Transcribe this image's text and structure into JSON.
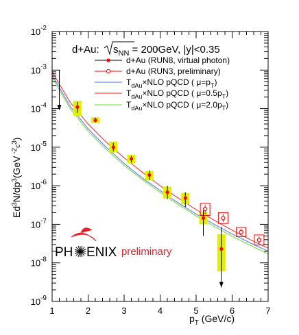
{
  "chart_data": {
    "type": "scatter",
    "title": "",
    "xlabel": "p_T (GeV/c)",
    "ylabel": "Ed^3N/dp^3(GeV^-2c^3)",
    "xlim": [
      1,
      7
    ],
    "ylim": [
      1e-09,
      0.01
    ],
    "yscale": "log",
    "grid": false,
    "legend_position": "top-right",
    "x_ticks": [
      1,
      2,
      3,
      4,
      5,
      6,
      7
    ],
    "y_ticks": [
      {
        "value": 1e-09,
        "base": "10",
        "exp": "-9"
      },
      {
        "value": 1e-08,
        "base": "10",
        "exp": "-8"
      },
      {
        "value": 1e-07,
        "base": "10",
        "exp": "-7"
      },
      {
        "value": 1e-06,
        "base": "10",
        "exp": "-6"
      },
      {
        "value": 1e-05,
        "base": "10",
        "exp": "-5"
      },
      {
        "value": 0.0001,
        "base": "10",
        "exp": "-4"
      },
      {
        "value": 0.001,
        "base": "10",
        "exp": "-3"
      },
      {
        "value": 0.01,
        "base": "10",
        "exp": "-2"
      }
    ],
    "annotation": {
      "prefix": "d+Au: ",
      "sqrt_label": "s",
      "sub": "NN",
      "suffix": " = 200GeV, |y|<0.35"
    },
    "legend": [
      {
        "text": "d+Au (RUN8, virtual photon)"
      },
      {
        "text": "d+Au (RUN3, preliminary)"
      },
      {
        "main": "T",
        "sub": "dAu",
        "rest": "×NLO pQCD ( μ=p",
        "sub2": "T",
        "end": ")"
      },
      {
        "main": "T",
        "sub": "dAu",
        "rest": "×NLO pQCD ( μ=0.5p",
        "sub2": "T",
        "end": ")"
      },
      {
        "main": "T",
        "sub": "dAu",
        "rest": "×NLO pQCD ( μ=2.0p",
        "sub2": "T",
        "end": ")"
      }
    ],
    "series": [
      {
        "name": "d+Au (RUN8, virtual photon)",
        "marker": "filled-circle",
        "color": "#ff0000",
        "syst_color": "#e2f000",
        "points": [
          {
            "x": 1.7,
            "y": 0.00011,
            "ylo": 7.8e-05,
            "yhi": 0.00015,
            "slo": 6.5e-05,
            "shi": 0.00016
          },
          {
            "x": 2.2,
            "y": 5e-05,
            "ylo": 4.4e-05,
            "yhi": 5.8e-05,
            "slo": 4.2e-05,
            "shi": 6e-05
          },
          {
            "x": 2.7,
            "y": 1e-05,
            "ylo": 7.8e-06,
            "yhi": 1.3e-05,
            "slo": 7.3e-06,
            "shi": 1.4e-05
          },
          {
            "x": 3.2,
            "y": 5e-06,
            "ylo": 4e-06,
            "yhi": 6e-06,
            "slo": 3.8e-06,
            "shi": 6.3e-06
          },
          {
            "x": 3.7,
            "y": 1.9e-06,
            "ylo": 1.4e-06,
            "yhi": 2.5e-06,
            "slo": 1.4e-06,
            "shi": 2.4e-06
          },
          {
            "x": 4.2,
            "y": 6.8e-07,
            "ylo": 4.5e-07,
            "yhi": 1e-06,
            "slo": 4.7e-07,
            "shi": 9.5e-07
          },
          {
            "x": 4.7,
            "y": 4.8e-07,
            "ylo": 2.8e-07,
            "yhi": 6.8e-07,
            "slo": 3.3e-07,
            "shi": 6.5e-07
          },
          {
            "x": 5.2,
            "y": 1.45e-07,
            "ylo": 5e-08,
            "yhi": 2.3e-07,
            "slo": 1e-07,
            "shi": 2.1e-07
          },
          {
            "x": 5.7,
            "y": 2.3e-08,
            "ylo": 2.3e-09,
            "yhi": 8.5e-08,
            "slo": 6e-09,
            "shi": 5.5e-08,
            "arrow_down": true
          }
        ]
      },
      {
        "name": "d+Au (RUN3, preliminary)",
        "marker": "open-circle",
        "color": "#ff0000",
        "points": [
          {
            "x": 5.25,
            "y": 2.5e-07,
            "ylo": 1.7e-07,
            "yhi": 3.5e-07
          },
          {
            "x": 5.75,
            "y": 1.45e-07,
            "ylo": 1.05e-07,
            "yhi": 2e-07
          },
          {
            "x": 6.25,
            "y": 6.3e-08,
            "ylo": 4.8e-08,
            "yhi": 8.3e-08
          },
          {
            "x": 6.75,
            "y": 3.9e-08,
            "ylo": 2.9e-08,
            "yhi": 5.3e-08
          }
        ]
      },
      {
        "name": "T_dAu × NLO pQCD ( μ=p_T )",
        "type": "line",
        "color": "#4a6cff",
        "x": [
          1,
          1.5,
          2,
          2.5,
          3,
          3.5,
          4,
          4.5,
          5,
          5.5,
          6,
          6.5,
          7
        ],
        "y": [
          0.00075,
          0.000115,
          3e-05,
          1e-05,
          3.8e-06,
          1.6e-06,
          7.5e-07,
          3.6e-07,
          1.85e-07,
          1e-07,
          5.6e-08,
          3.3e-08,
          2e-08
        ]
      },
      {
        "name": "T_dAu × NLO pQCD ( μ=0.5p_T )",
        "type": "line",
        "color": "#ff2020",
        "x": [
          1,
          1.5,
          2,
          2.5,
          3,
          3.5,
          4,
          4.5,
          5,
          5.5,
          6,
          6.5,
          7
        ],
        "y": [
          0.0009,
          0.000145,
          4e-05,
          1.35e-05,
          5.3e-06,
          2.25e-06,
          1e-06,
          4.8e-07,
          2.4e-07,
          1.27e-07,
          7e-08,
          4e-08,
          2.4e-08
        ]
      },
      {
        "name": "T_dAu × NLO pQCD ( μ=2.0p_T )",
        "type": "line",
        "color": "#66dd22",
        "x": [
          1,
          1.5,
          2,
          2.5,
          3,
          3.5,
          4,
          4.5,
          5,
          5.5,
          6,
          6.5,
          7
        ],
        "y": [
          0.00065,
          0.0001,
          2.6e-05,
          8.8e-06,
          3.4e-06,
          1.45e-06,
          6.7e-07,
          3.25e-07,
          1.65e-07,
          8.8e-08,
          4.9e-08,
          2.85e-08,
          1.7e-08
        ]
      }
    ],
    "extra_arrow": {
      "x": 1.2,
      "y_from": 0.001,
      "y_to": 9e-05
    }
  },
  "logo": {
    "left": "PH",
    "right": "ENIX",
    "word": "preliminary",
    "color": "#e8202a"
  }
}
